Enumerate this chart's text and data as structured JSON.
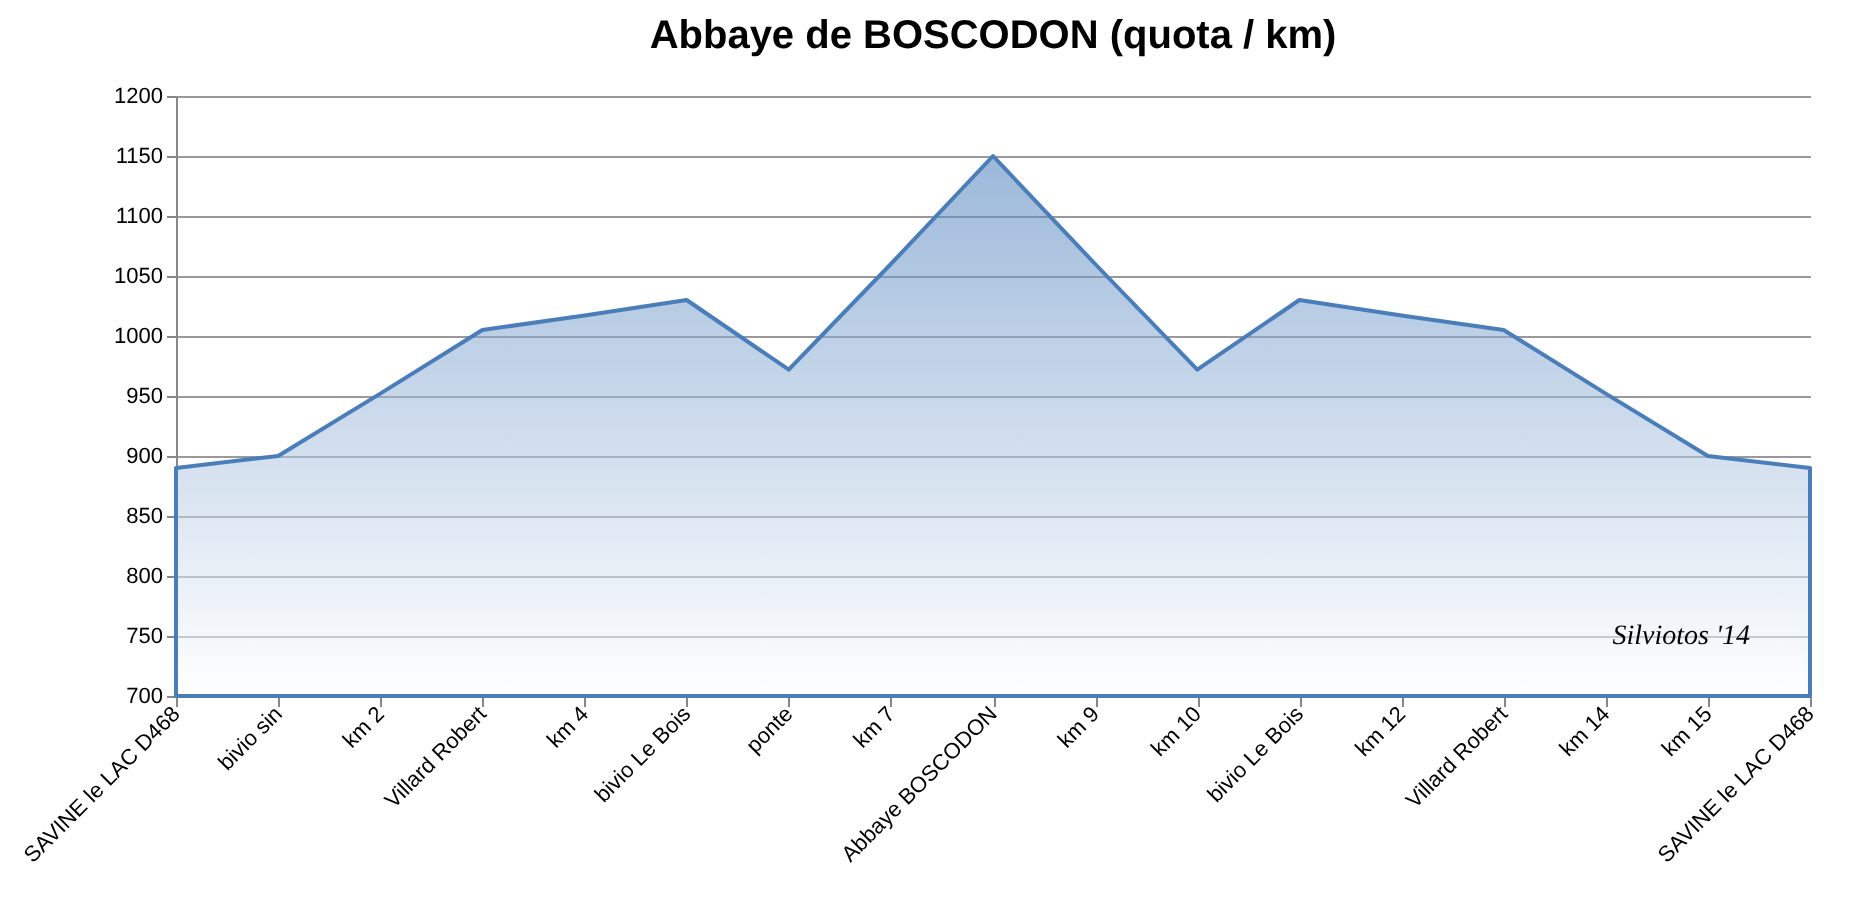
{
  "chart_data": {
    "type": "area",
    "title": "Abbaye de BOSCODON (quota / km)",
    "categories": [
      "SAVINE le LAC D468",
      "bivio sin",
      "km 2",
      "Villard Robert",
      "km 4",
      "bivio Le Bois",
      "ponte",
      "km 7",
      "Abbaye BOSCODON",
      "km 9",
      "km 10",
      "bivio Le Bois",
      "km 12",
      "Villard Robert",
      "km 14",
      "km 15",
      "SAVINE le LAC D468"
    ],
    "series": [
      {
        "color": "#4a7ebb",
        "values": [
          890,
          900,
          952,
          1005,
          1017,
          1030,
          972,
          1060,
          1150,
          1060,
          972,
          1030,
          1017,
          1005,
          952,
          900,
          890
        ]
      }
    ],
    "ylim": [
      700,
      1200
    ],
    "yticks": [
      700,
      750,
      800,
      850,
      900,
      950,
      1000,
      1050,
      1100,
      1150,
      1200
    ],
    "grid": "y",
    "annotations": [
      "Silviotos '14"
    ]
  }
}
